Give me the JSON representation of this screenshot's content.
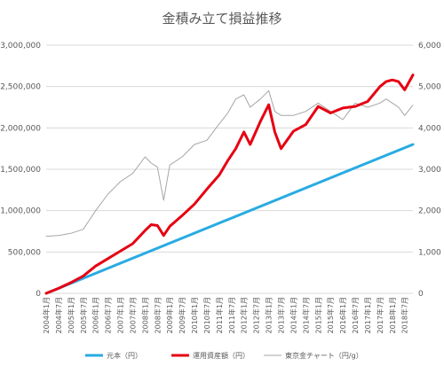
{
  "chart_data": {
    "type": "line",
    "title": "金積み立て損益推移",
    "y_left": {
      "ylim": [
        0,
        3000000
      ],
      "ticks": [
        "0",
        "500,000",
        "1,000,000",
        "1,500,000",
        "2,000,000",
        "2,500,000",
        "3,000,000"
      ]
    },
    "y_right": {
      "ylim": [
        0,
        6000
      ],
      "ticks": [
        "0",
        "1,000",
        "2,000",
        "3,000",
        "4,000",
        "5,000",
        "6,000"
      ]
    },
    "x_ticks": [
      "2004年1月",
      "2004年7月",
      "2005年1月",
      "2005年7月",
      "2006年1月",
      "2006年7月",
      "2007年1月",
      "2007年7月",
      "2008年1月",
      "2008年7月",
      "2009年1月",
      "2009年7月",
      "2010年1月",
      "2010年7月",
      "2011年1月",
      "2011年7月",
      "2012年1月",
      "2012年7月",
      "2013年1月",
      "2013年7月",
      "2014年1月",
      "2014年7月",
      "2015年1月",
      "2015年7月",
      "2016年1月",
      "2016年7月",
      "2017年1月",
      "2017年7月",
      "2018年1月",
      "2018年7月"
    ],
    "grid": true,
    "legend_position": "bottom",
    "series": [
      {
        "name": "元本（円）",
        "axis": "left",
        "color": "#29ABE2",
        "x": [
          "2004-01",
          "2018-11"
        ],
        "values": [
          0,
          1800000
        ]
      },
      {
        "name": "運用資産額（円）",
        "axis": "left",
        "color": "#E60012",
        "x": [
          "2004-01",
          "2004-07",
          "2005-01",
          "2005-07",
          "2006-01",
          "2006-07",
          "2007-01",
          "2007-07",
          "2008-01",
          "2008-04",
          "2008-07",
          "2008-10",
          "2009-01",
          "2009-07",
          "2010-01",
          "2010-07",
          "2011-01",
          "2011-05",
          "2011-09",
          "2012-01",
          "2012-04",
          "2012-09",
          "2013-01",
          "2013-04",
          "2013-07",
          "2014-01",
          "2014-07",
          "2015-01",
          "2015-07",
          "2016-01",
          "2016-07",
          "2017-01",
          "2017-07",
          "2017-10",
          "2018-01",
          "2018-04",
          "2018-07",
          "2018-11"
        ],
        "values": [
          0,
          60000,
          130000,
          210000,
          330000,
          420000,
          510000,
          600000,
          760000,
          830000,
          820000,
          700000,
          810000,
          940000,
          1080000,
          1260000,
          1430000,
          1600000,
          1750000,
          1950000,
          1800000,
          2080000,
          2280000,
          1950000,
          1750000,
          1960000,
          2040000,
          2260000,
          2180000,
          2240000,
          2260000,
          2320000,
          2500000,
          2560000,
          2580000,
          2560000,
          2460000,
          2640000
        ]
      },
      {
        "name": "東京金チャート（円/g）",
        "axis": "right",
        "color": "#a6a6a6",
        "x": [
          "2004-01",
          "2004-07",
          "2005-01",
          "2005-07",
          "2006-01",
          "2006-07",
          "2007-01",
          "2007-07",
          "2008-01",
          "2008-04",
          "2008-07",
          "2008-10",
          "2009-01",
          "2009-07",
          "2010-01",
          "2010-07",
          "2011-01",
          "2011-05",
          "2011-09",
          "2012-01",
          "2012-04",
          "2012-09",
          "2013-01",
          "2013-04",
          "2013-07",
          "2014-01",
          "2014-07",
          "2015-01",
          "2015-07",
          "2016-01",
          "2016-07",
          "2017-01",
          "2017-07",
          "2017-10",
          "2018-01",
          "2018-04",
          "2018-07",
          "2018-11"
        ],
        "values": [
          1380,
          1400,
          1450,
          1550,
          2000,
          2400,
          2700,
          2900,
          3300,
          3150,
          3050,
          2250,
          3100,
          3300,
          3600,
          3700,
          4100,
          4350,
          4700,
          4800,
          4500,
          4700,
          4900,
          4400,
          4300,
          4300,
          4400,
          4600,
          4400,
          4200,
          4600,
          4500,
          4600,
          4700,
          4600,
          4500,
          4300,
          4550
        ]
      }
    ]
  }
}
